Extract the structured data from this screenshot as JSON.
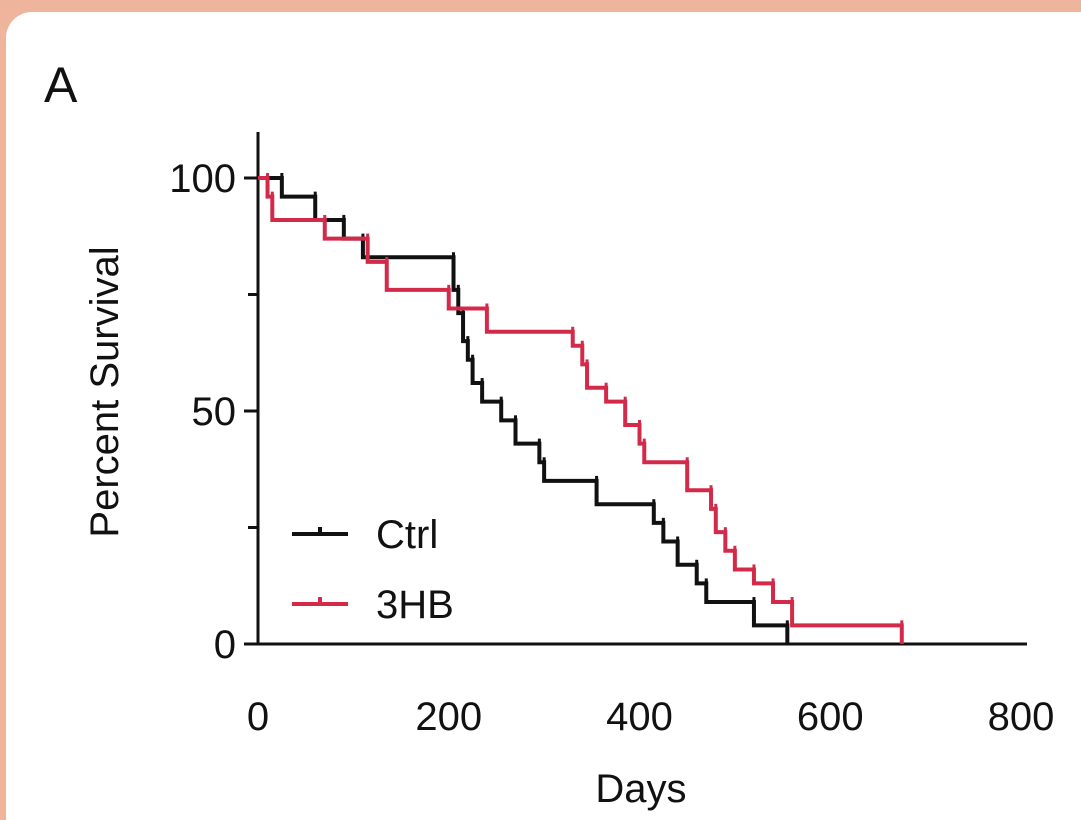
{
  "panel_label": "A",
  "colors": {
    "Ctrl": "#111111",
    "3HB": "#d42a4a",
    "page_bg": "#eeb59c"
  },
  "chart_data": {
    "type": "line",
    "step": true,
    "xlabel": "Days",
    "ylabel": "Percent Survival",
    "xlim": [
      0,
      800
    ],
    "ylim": [
      0,
      100
    ],
    "xticks": [
      "0",
      "200",
      "400",
      "600",
      "800"
    ],
    "yticks": [
      "0",
      "50",
      "100"
    ],
    "grid": false,
    "legend": {
      "position": "bottom-left",
      "entries": [
        "Ctrl",
        "3HB"
      ]
    },
    "series": [
      {
        "name": "Ctrl",
        "color": "#111111",
        "points": [
          [
            0,
            100
          ],
          [
            25,
            96
          ],
          [
            60,
            91
          ],
          [
            90,
            87
          ],
          [
            110,
            83
          ],
          [
            205,
            76
          ],
          [
            210,
            71
          ],
          [
            215,
            65
          ],
          [
            220,
            61
          ],
          [
            225,
            56
          ],
          [
            235,
            52
          ],
          [
            255,
            48
          ],
          [
            270,
            43
          ],
          [
            295,
            39
          ],
          [
            300,
            35
          ],
          [
            355,
            30
          ],
          [
            415,
            26
          ],
          [
            425,
            22
          ],
          [
            440,
            17
          ],
          [
            460,
            13
          ],
          [
            470,
            9
          ],
          [
            520,
            4
          ],
          [
            555,
            0
          ]
        ]
      },
      {
        "name": "3HB",
        "color": "#d42a4a",
        "points": [
          [
            0,
            100
          ],
          [
            10,
            96
          ],
          [
            15,
            91
          ],
          [
            70,
            87
          ],
          [
            115,
            82
          ],
          [
            135,
            76
          ],
          [
            200,
            72
          ],
          [
            240,
            67
          ],
          [
            330,
            64
          ],
          [
            340,
            60
          ],
          [
            345,
            55
          ],
          [
            365,
            52
          ],
          [
            385,
            47
          ],
          [
            400,
            43
          ],
          [
            405,
            39
          ],
          [
            450,
            33
          ],
          [
            475,
            29
          ],
          [
            480,
            24
          ],
          [
            490,
            20
          ],
          [
            500,
            16
          ],
          [
            520,
            13
          ],
          [
            540,
            9
          ],
          [
            560,
            4
          ],
          [
            675,
            0
          ]
        ]
      }
    ]
  }
}
